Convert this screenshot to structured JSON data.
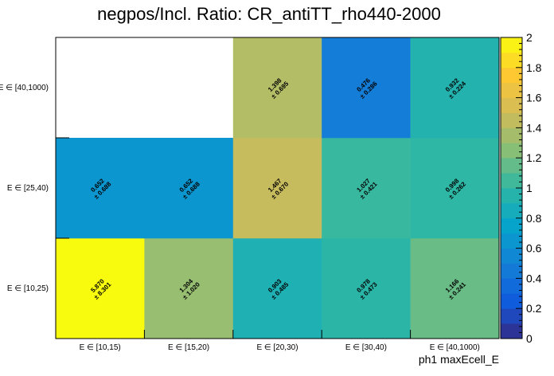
{
  "chart_data": {
    "type": "heatmap",
    "title": "negpos/Incl. Ratio: CR_antiTT_rho440-2000",
    "xlabel": "ph1 maxEcell_E",
    "ylabel": "",
    "x_categories": [
      "E ∈ [10,15)",
      "E ∈ [15,20)",
      "E ∈ [20,30)",
      "E ∈ [30,40)",
      "E ∈ [40,1000)"
    ],
    "y_categories": [
      "E ∈ [10,25)",
      "E ∈ [25,40)",
      "E ∈ [40,1000)"
    ],
    "zlim": [
      0,
      2
    ],
    "z_ticks": [
      "0",
      "0.2",
      "0.4",
      "0.6",
      "0.8",
      "1",
      "1.2",
      "1.4",
      "1.6",
      "1.8",
      "2"
    ],
    "cells": [
      {
        "xi": 0,
        "yi": 0,
        "value": 5.87,
        "value_label": "5.870",
        "error_label": "± 8.301"
      },
      {
        "xi": 1,
        "yi": 0,
        "value": 1.304,
        "value_label": "1.304",
        "error_label": "± 1.020"
      },
      {
        "xi": 2,
        "yi": 0,
        "value": 0.903,
        "value_label": "0.903",
        "error_label": "± 0.485"
      },
      {
        "xi": 3,
        "yi": 0,
        "value": 0.978,
        "value_label": "0.978",
        "error_label": "± 0.473"
      },
      {
        "xi": 4,
        "yi": 0,
        "value": 1.166,
        "value_label": "1.166",
        "error_label": "± 0.241"
      },
      {
        "xi": 0,
        "yi": 1,
        "value": 0.652,
        "value_label": "0.652",
        "error_label": "± 0.688"
      },
      {
        "xi": 1,
        "yi": 1,
        "value": 0.652,
        "value_label": "0.652",
        "error_label": "± 0.688"
      },
      {
        "xi": 2,
        "yi": 1,
        "value": 1.467,
        "value_label": "1.467",
        "error_label": "± 0.670"
      },
      {
        "xi": 3,
        "yi": 1,
        "value": 1.027,
        "value_label": "1.027",
        "error_label": "± 0.421"
      },
      {
        "xi": 4,
        "yi": 1,
        "value": 0.998,
        "value_label": "0.998",
        "error_label": "± 0.262"
      },
      {
        "xi": 2,
        "yi": 2,
        "value": 1.398,
        "value_label": "1.398",
        "error_label": "± 0.695"
      },
      {
        "xi": 3,
        "yi": 2,
        "value": 0.476,
        "value_label": "0.476",
        "error_label": "± 0.286"
      },
      {
        "xi": 4,
        "yi": 2,
        "value": 0.932,
        "value_label": "0.932",
        "error_label": "± 0.224"
      }
    ],
    "palette": [
      "#352a87",
      "#0f5cdd",
      "#1481d6",
      "#06a4ca",
      "#2eb7a4",
      "#87bf77",
      "#d1bb59",
      "#fec832",
      "#f9fb0e"
    ]
  }
}
